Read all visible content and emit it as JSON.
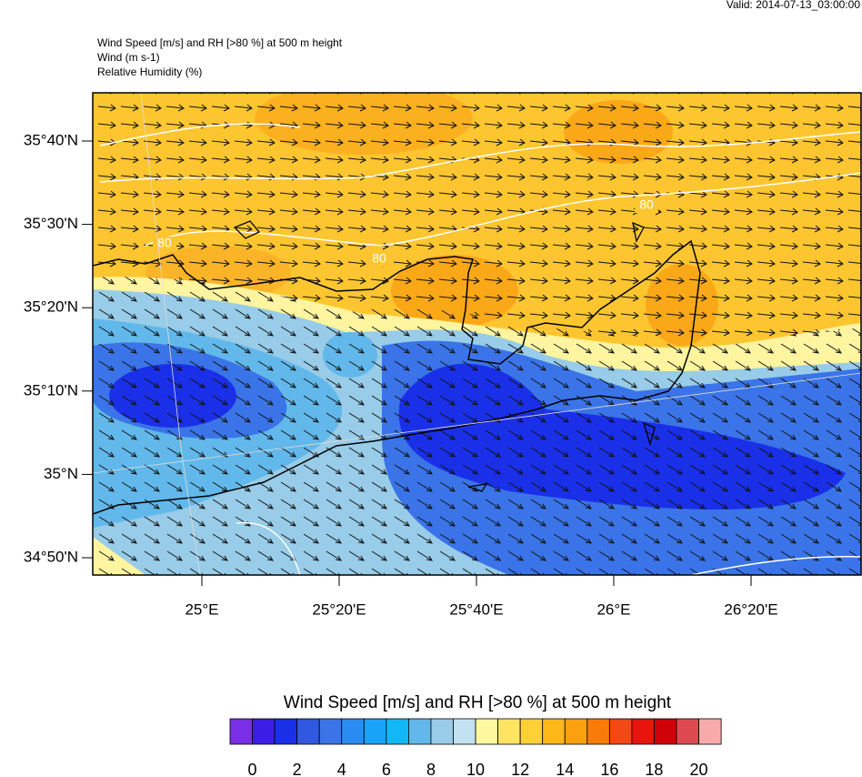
{
  "header": {
    "valid": "Valid: 2014-07-13_03:00:00",
    "lines": [
      "Wind Speed [m/s] and RH [>80 %] at 500 m height",
      "Wind   (m s-1)",
      "Relative Humidity   (%)"
    ]
  },
  "map": {
    "lat_labels": [
      "35°40'N",
      "35°30'N",
      "35°20'N",
      "35°10'N",
      "35°N",
      "34°50'N"
    ],
    "lon_labels": [
      "25°E",
      "25°20'E",
      "25°40'E",
      "26°E",
      "26°20'E"
    ],
    "contour_labels": [
      "80",
      "80",
      "80"
    ]
  },
  "colorbar": {
    "title": "Wind Speed [m/s] and RH [>80 %] at 500 m height",
    "colors": [
      "#7a2ee6",
      "#3a1ee8",
      "#1a30e8",
      "#3058e0",
      "#3a74e8",
      "#2a8cf0",
      "#18a2f8",
      "#12b8f6",
      "#62b8ea",
      "#98cce8",
      "#c2e2f2",
      "#fff8a0",
      "#ffe462",
      "#fdd038",
      "#fdb818",
      "#fca010",
      "#fa7c08",
      "#f44814",
      "#e8140e",
      "#d00008",
      "#dc4a50",
      "#f8aaaa"
    ],
    "ticks": [
      0,
      2,
      4,
      6,
      8,
      10,
      12,
      14,
      16,
      18,
      20
    ]
  }
}
